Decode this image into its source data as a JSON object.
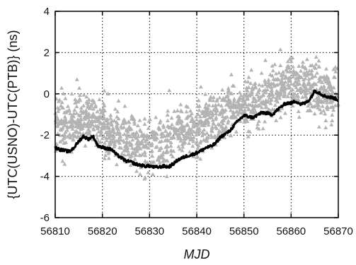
{
  "chart_data": {
    "type": "scatter",
    "xlabel": "MJD",
    "ylabel": "{UTC(USNO)-UTC(PTB)} (ns)",
    "xlim": [
      56810,
      56870
    ],
    "ylim": [
      -6,
      4
    ],
    "x_ticks": [
      "56810",
      "56820",
      "56830",
      "56840",
      "56850",
      "56860",
      "56870"
    ],
    "y_ticks": [
      "-6",
      "-4",
      "-2",
      "0",
      "2",
      "4"
    ],
    "grid": true,
    "grid_style": "dotted",
    "legend": "none",
    "series": [
      {
        "marker": "triangle",
        "color": "#b3b3b3",
        "spread": 1.1,
        "x": [
          56810,
          56812,
          56814,
          56816,
          56818,
          56820,
          56822,
          56824,
          56826,
          56828,
          56830,
          56832,
          56834,
          56836,
          56838,
          56840,
          56842,
          56844,
          56846,
          56848,
          56850,
          56852,
          56854,
          56856,
          56858,
          56860,
          56862,
          56864,
          56866,
          56868,
          56870
        ],
        "y": [
          -1.6,
          -1.5,
          -1.4,
          -1.3,
          -1.2,
          -1.5,
          -1.9,
          -2.1,
          -2.3,
          -2.4,
          -2.5,
          -2.4,
          -2.2,
          -2.0,
          -1.8,
          -1.5,
          -1.4,
          -1.2,
          -1.0,
          -0.8,
          -0.6,
          -0.4,
          -0.2,
          0.1,
          0.4,
          0.6,
          0.5,
          0.3,
          0.1,
          -0.1,
          -0.2
        ]
      },
      {
        "type": "line",
        "color": "#000000",
        "x": [
          56810,
          56811,
          56812,
          56813,
          56814,
          56815,
          56816,
          56817,
          56818,
          56819,
          56820,
          56821,
          56822,
          56823,
          56824,
          56825,
          56826,
          56827,
          56828,
          56829,
          56830,
          56831,
          56832,
          56833,
          56834,
          56835,
          56836,
          56837,
          56838,
          56839,
          56840,
          56841,
          56842,
          56843,
          56844,
          56845,
          56846,
          56847,
          56848,
          56849,
          56850,
          56851,
          56852,
          56853,
          56854,
          56855,
          56856,
          56857,
          56858,
          56859,
          56860,
          56861,
          56862,
          56863,
          56864,
          56865,
          56866,
          56867,
          56868,
          56869,
          56870
        ],
        "y": [
          -2.6,
          -2.7,
          -2.75,
          -2.8,
          -2.6,
          -2.3,
          -2.05,
          -2.2,
          -2.05,
          -2.5,
          -2.6,
          -2.65,
          -2.7,
          -2.95,
          -3.1,
          -3.25,
          -3.3,
          -3.4,
          -3.45,
          -3.5,
          -3.5,
          -3.55,
          -3.55,
          -3.5,
          -3.55,
          -3.4,
          -3.2,
          -3.1,
          -3.0,
          -2.95,
          -2.85,
          -2.75,
          -2.6,
          -2.55,
          -2.4,
          -2.1,
          -1.95,
          -1.8,
          -1.5,
          -1.25,
          -1.05,
          -1.1,
          -1.15,
          -1.0,
          -0.9,
          -0.95,
          -1.0,
          -0.8,
          -0.6,
          -0.45,
          -0.45,
          -0.35,
          -0.5,
          -0.45,
          -0.25,
          0.15,
          0.05,
          -0.1,
          -0.15,
          -0.2,
          -0.3
        ]
      }
    ]
  }
}
